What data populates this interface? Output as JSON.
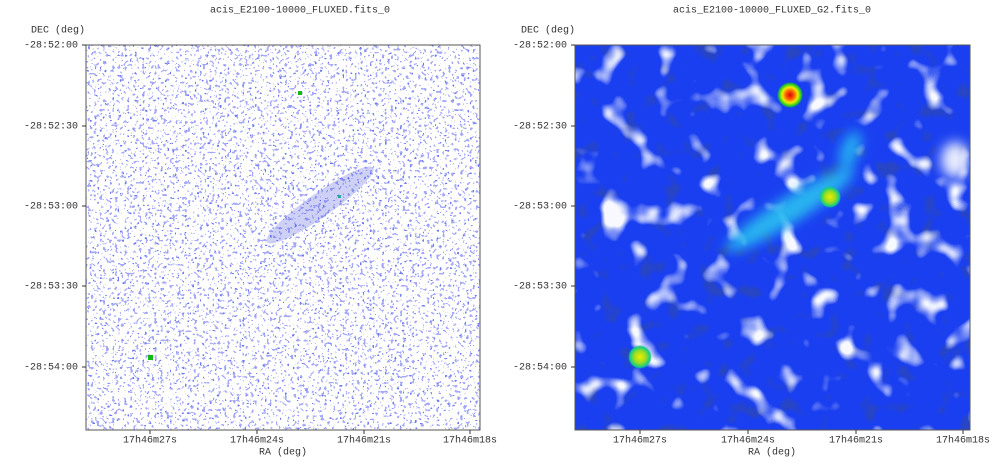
{
  "panels": [
    {
      "title": "acis_E2100-10000_FLUXED.fits_0",
      "y_axis_label": "DEC (deg)",
      "x_axis_label": "RA (deg)",
      "y_tick_labels": [
        "-28:52:00",
        "-28:52:30",
        "-28:53:00",
        "-28:53:30",
        "-28:54:00"
      ],
      "x_tick_labels": [
        "17h46m27s",
        "17h46m24s",
        "17h46m21s",
        "17h46m18s"
      ]
    },
    {
      "title": "acis_E2100-10000_FLUXED_G2.fits_0",
      "y_axis_label": "DEC (deg)",
      "x_axis_label": "RA (deg)",
      "y_tick_labels": [
        "-28:52:00",
        "-28:52:30",
        "-28:53:00",
        "-28:53:30",
        "-28:54:00"
      ],
      "x_tick_labels": [
        "17h46m27s",
        "17h46m24s",
        "17h46m21s",
        "17h46m18s"
      ]
    }
  ]
}
